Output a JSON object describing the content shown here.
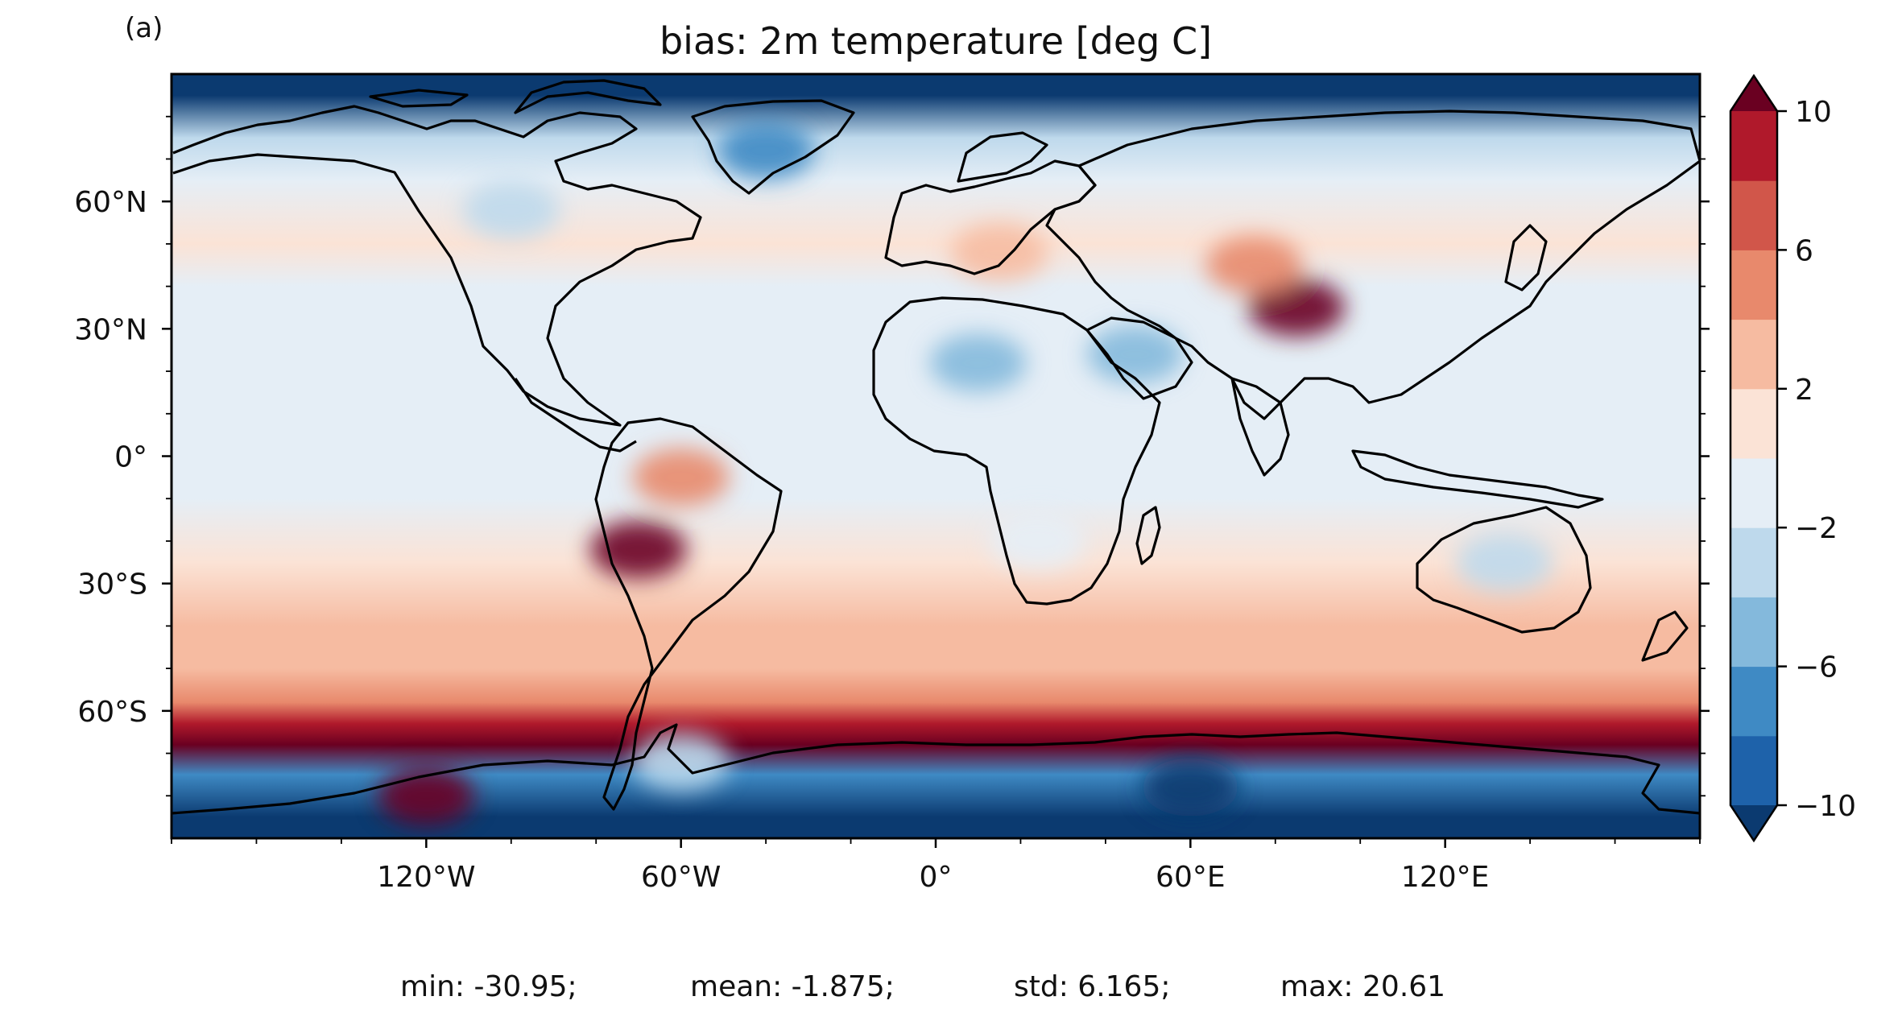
{
  "panel_label": "(a)",
  "title": "bias: 2m temperature [deg C]",
  "chart_data": {
    "type": "heatmap",
    "projection": "plate-carree",
    "variable": "2m temperature bias",
    "units": "deg C",
    "lon_range": [
      -180,
      180
    ],
    "lat_range": [
      -90,
      90
    ],
    "lon_ticks": [
      {
        "value": -120,
        "label": "120°W"
      },
      {
        "value": -60,
        "label": "60°W"
      },
      {
        "value": 0,
        "label": "0°"
      },
      {
        "value": 60,
        "label": "60°E"
      },
      {
        "value": 120,
        "label": "120°E"
      }
    ],
    "lat_ticks": [
      {
        "value": 60,
        "label": "60°N"
      },
      {
        "value": 30,
        "label": "30°N"
      },
      {
        "value": 0,
        "label": "0°"
      },
      {
        "value": -30,
        "label": "30°S"
      },
      {
        "value": -60,
        "label": "60°S"
      }
    ],
    "colorbar": {
      "levels": [
        -10,
        -8,
        -6,
        -4,
        -2,
        0,
        2,
        4,
        6,
        8,
        10
      ],
      "tick_values": [
        10,
        6,
        2,
        -2,
        -6,
        -10
      ],
      "tick_labels": [
        "10",
        "6",
        "2",
        "−2",
        "−6",
        "−10"
      ],
      "extend": "both",
      "colors": [
        "#0b3a70",
        "#1e62aa",
        "#3f8ac4",
        "#84b9dc",
        "#bed9ec",
        "#e5eef6",
        "#fbe3d6",
        "#f6bba1",
        "#e8896c",
        "#d1564a",
        "#b0192b",
        "#6a0021"
      ]
    },
    "zonal_bias_profile": [
      {
        "lat": 85,
        "value": -11
      },
      {
        "lat": 75,
        "value": -4
      },
      {
        "lat": 65,
        "value": -2
      },
      {
        "lat": 50,
        "value": 1
      },
      {
        "lat": 40,
        "value": -1
      },
      {
        "lat": 20,
        "value": -1
      },
      {
        "lat": 5,
        "value": -1
      },
      {
        "lat": -10,
        "value": -1
      },
      {
        "lat": -25,
        "value": 1
      },
      {
        "lat": -40,
        "value": 2
      },
      {
        "lat": -50,
        "value": 3
      },
      {
        "lat": -58,
        "value": 5
      },
      {
        "lat": -63,
        "value": 8
      },
      {
        "lat": -68,
        "value": 11
      },
      {
        "lat": -75,
        "value": -7
      },
      {
        "lat": -85,
        "value": -11
      }
    ],
    "regional_features": [
      {
        "region": "Sahara",
        "lon": 10,
        "lat": 22,
        "value": -5
      },
      {
        "region": "Arabian Peninsula",
        "lon": 47,
        "lat": 24,
        "value": -5
      },
      {
        "region": "Amazon",
        "lon": -60,
        "lat": -5,
        "value": 4
      },
      {
        "region": "Andes",
        "lon": -70,
        "lat": -22,
        "value": 10
      },
      {
        "region": "Tibetan Plateau",
        "lon": 85,
        "lat": 35,
        "value": 10
      },
      {
        "region": "Central Asia",
        "lon": 75,
        "lat": 45,
        "value": 4
      },
      {
        "region": "Europe",
        "lon": 15,
        "lat": 48,
        "value": 3
      },
      {
        "region": "Australia",
        "lon": 134,
        "lat": -25,
        "value": -3
      },
      {
        "region": "Canada",
        "lon": -100,
        "lat": 58,
        "value": -4
      },
      {
        "region": "Greenland",
        "lon": -40,
        "lat": 72,
        "value": -8
      },
      {
        "region": "Southern Africa",
        "lon": 24,
        "lat": -20,
        "value": -2
      },
      {
        "region": "East Antarctica",
        "lon": 60,
        "lat": -78,
        "value": -11
      },
      {
        "region": "West Antarctica",
        "lon": -120,
        "lat": -80,
        "value": 10
      },
      {
        "region": "Antarctic Peninsula",
        "lon": -60,
        "lat": -72,
        "value": -3
      }
    ]
  },
  "stats": {
    "min": "min: -30.95;",
    "mean": "mean: -1.875;",
    "std": "std: 6.165;",
    "max": "max: 20.61"
  }
}
